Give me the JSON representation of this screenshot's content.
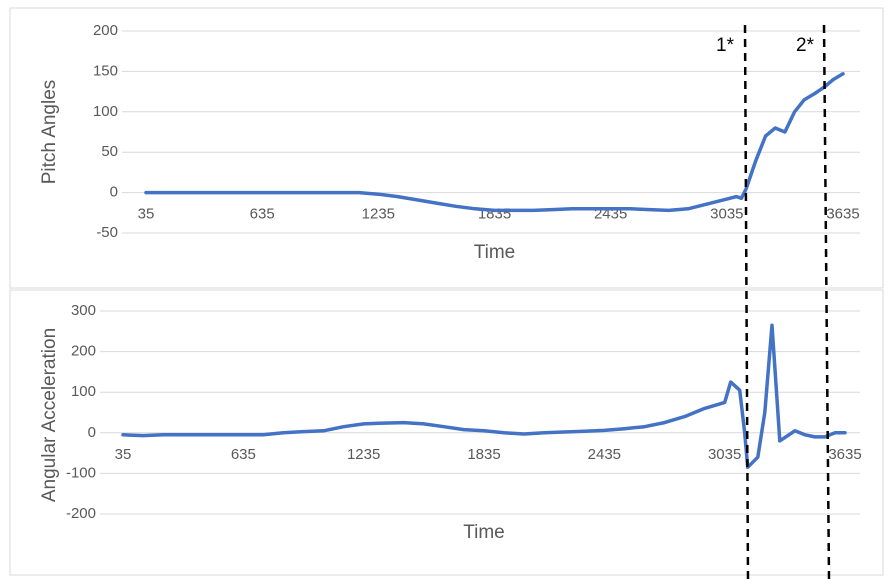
{
  "chart_data": [
    {
      "type": "line",
      "y_label": "Pitch Angles",
      "x_label": "Time",
      "color": "#4472c4",
      "grid": true,
      "x": [
        35,
        135,
        235,
        335,
        435,
        535,
        635,
        735,
        835,
        935,
        1035,
        1135,
        1235,
        1335,
        1435,
        1535,
        1635,
        1735,
        1835,
        1935,
        2035,
        2135,
        2235,
        2335,
        2435,
        2535,
        2635,
        2735,
        2835,
        2935,
        3035,
        3085,
        3110,
        3135,
        3185,
        3235,
        3285,
        3335,
        3385,
        3435,
        3485,
        3535,
        3585,
        3635
      ],
      "values": [
        0,
        0,
        0,
        0,
        0,
        0,
        0,
        0,
        0,
        0,
        0,
        0,
        -2,
        -5,
        -9,
        -13,
        -17,
        -20,
        -22,
        -22,
        -22,
        -21,
        -20,
        -20,
        -20,
        -20,
        -21,
        -22,
        -20,
        -14,
        -8,
        -5,
        -7,
        5,
        40,
        70,
        80,
        75,
        100,
        115,
        122,
        130,
        140,
        147
      ],
      "xlim": [
        35,
        3635
      ],
      "xticks": [
        35,
        635,
        1235,
        1835,
        2435,
        3035,
        3635
      ],
      "ylim": [
        -50,
        200
      ],
      "yticks": [
        -50,
        0,
        50,
        100,
        150,
        200
      ]
    },
    {
      "type": "line",
      "y_label": "Angular Acceleration",
      "x_label": "Time",
      "color": "#4472c4",
      "grid": true,
      "x": [
        35,
        135,
        235,
        335,
        435,
        535,
        635,
        735,
        835,
        935,
        1035,
        1135,
        1235,
        1335,
        1435,
        1535,
        1635,
        1735,
        1835,
        1935,
        2035,
        2135,
        2235,
        2335,
        2435,
        2535,
        2635,
        2735,
        2835,
        2935,
        3035,
        3065,
        3110,
        3135,
        3150,
        3200,
        3235,
        3271,
        3310,
        3385,
        3435,
        3485,
        3535,
        3585,
        3635
      ],
      "values": [
        -5,
        -7,
        -5,
        -5,
        -5,
        -5,
        -5,
        -5,
        0,
        3,
        5,
        15,
        22,
        24,
        25,
        22,
        15,
        8,
        5,
        0,
        -3,
        0,
        2,
        4,
        6,
        10,
        15,
        25,
        40,
        60,
        75,
        125,
        105,
        0,
        -85,
        -60,
        50,
        265,
        -20,
        5,
        -5,
        -10,
        -10,
        0,
        0
      ],
      "xlim": [
        35,
        3635
      ],
      "xticks": [
        35,
        635,
        1235,
        1835,
        2435,
        3035,
        3635
      ],
      "ylim": [
        -200,
        300
      ],
      "yticks": [
        -200,
        -100,
        0,
        100,
        200,
        300
      ]
    }
  ],
  "annotations": [
    "1*",
    "2*"
  ]
}
